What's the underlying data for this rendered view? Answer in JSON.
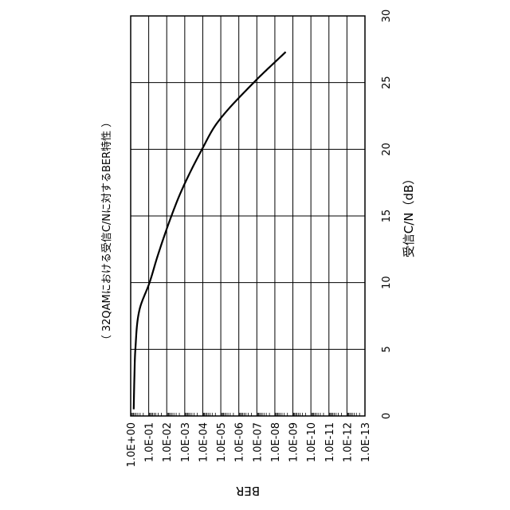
{
  "chart_data": {
    "type": "line",
    "title": "（ 32QAMにおける受信C/Nに対するBER特性 ）",
    "xlabel": "受信C/N（dB）",
    "ylabel": "BER",
    "xlim": [
      0,
      30
    ],
    "x_ticks": [
      "0",
      "5",
      "10",
      "15",
      "20",
      "25",
      "30"
    ],
    "y_scale": "log",
    "y_ticks": [
      "1.0E+00",
      "1.0E-01",
      "1.0E-02",
      "1.0E-03",
      "1.0E-04",
      "1.0E-05",
      "1.0E-06",
      "1.0E-07",
      "1.0E-08",
      "1.0E-09",
      "1.0E-10",
      "1.0E-11",
      "1.0E-12",
      "1.0E-13"
    ],
    "grid": true,
    "series": [
      {
        "x": [
          0.5,
          3,
          5,
          8,
          10,
          12,
          15,
          17,
          20,
          22,
          25,
          27.3
        ],
        "y": [
          0.68,
          0.62,
          0.55,
          0.32,
          0.09,
          0.032,
          0.0055,
          0.0014,
          0.00011,
          1.55e-05,
          1.5e-07,
          2.5e-09
        ]
      }
    ]
  }
}
